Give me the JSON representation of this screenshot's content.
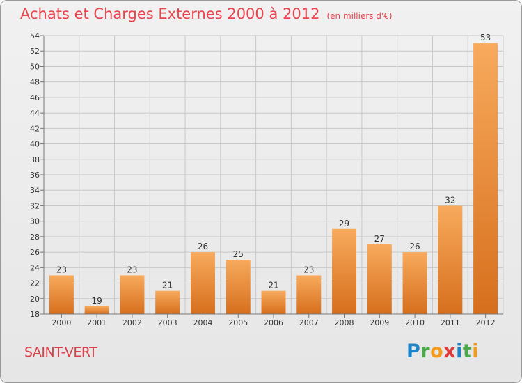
{
  "title": "Achats et Charges Externes 2000 à 2012",
  "unit": "(en milliers d'€)",
  "commune": "SAINT-VERT",
  "brand": {
    "letters": [
      "P",
      "r",
      "o",
      "x",
      "i",
      "t",
      "i"
    ],
    "colors": [
      "#1c83c7",
      "#4aa84a",
      "#f59b1c",
      "#e23a3a",
      "#1c83c7",
      "#4aa84a",
      "#f59b1c"
    ]
  },
  "colors": {
    "title": "#e8444d",
    "bar_light": "#f7a75a",
    "bar_dark": "#d8711f",
    "grid": "#c8c8c8"
  },
  "chart_data": {
    "type": "bar",
    "categories": [
      "2000",
      "2001",
      "2002",
      "2003",
      "2004",
      "2005",
      "2006",
      "2007",
      "2008",
      "2009",
      "2010",
      "2011",
      "2012"
    ],
    "values": [
      23,
      19,
      23,
      21,
      26,
      25,
      21,
      23,
      29,
      27,
      26,
      32,
      53
    ],
    "ylim": [
      18,
      54
    ],
    "yticks": [
      18,
      20,
      22,
      24,
      26,
      28,
      30,
      32,
      34,
      36,
      38,
      40,
      42,
      44,
      46,
      48,
      50,
      52,
      54
    ],
    "grid": true
  }
}
